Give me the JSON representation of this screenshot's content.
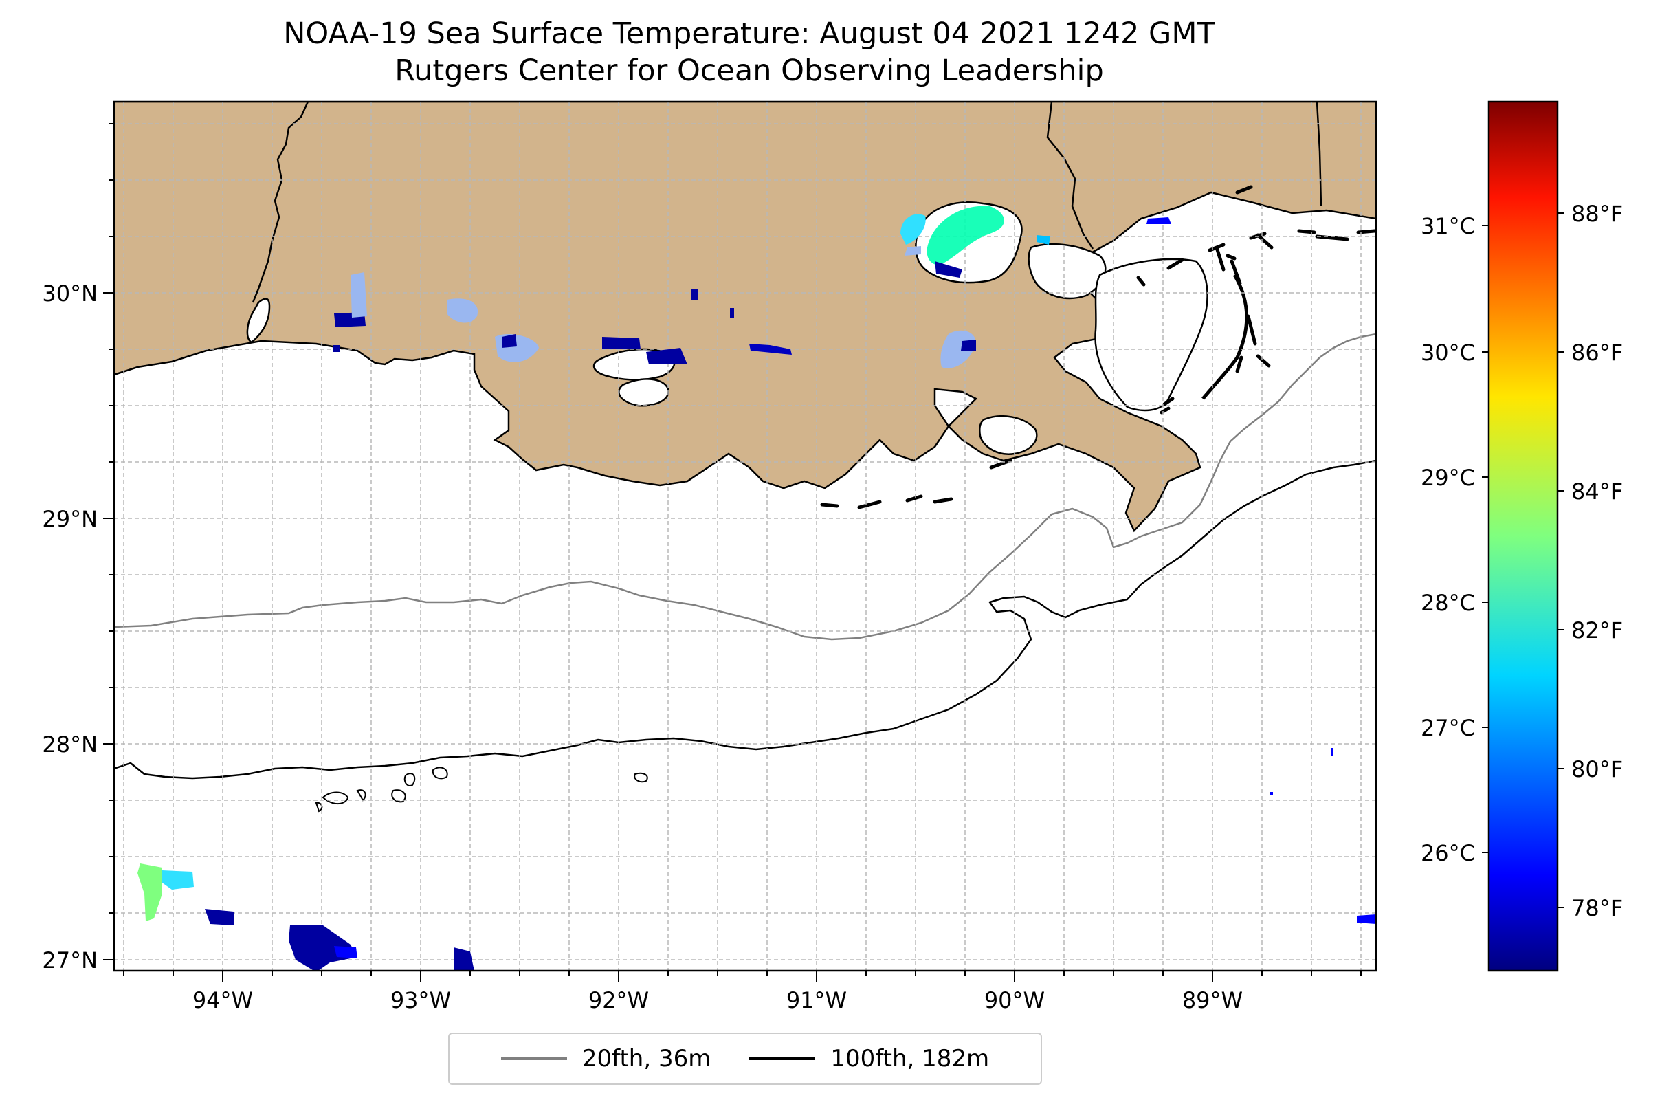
{
  "title": {
    "line1": "NOAA-19 Sea Surface Temperature: August 04 2021 1242 GMT",
    "line2": "Rutgers Center for Ocean Observing Leadership"
  },
  "map": {
    "lon_ticks": [
      "94°W",
      "93°W",
      "92°W",
      "91°W",
      "90°W",
      "89°W"
    ],
    "lat_ticks": [
      "30°N",
      "29°N",
      "28°N",
      "27°N"
    ],
    "colors": {
      "land": "#d2b48c",
      "ocean": "#ffffff",
      "coast": "#000000",
      "grid": "#bbbbbb"
    }
  },
  "colorbar": {
    "celsius_ticks": [
      "31°C",
      "30°C",
      "29°C",
      "28°C",
      "27°C",
      "26°C"
    ],
    "fahrenheit_ticks": [
      "88°F",
      "86°F",
      "84°F",
      "82°F",
      "80°F",
      "78°F"
    ],
    "colormap": "jet"
  },
  "legend": {
    "items": [
      {
        "label": "20fth, 36m",
        "color": "#808080"
      },
      {
        "label": "100fth, 182m",
        "color": "#000000"
      }
    ]
  }
}
